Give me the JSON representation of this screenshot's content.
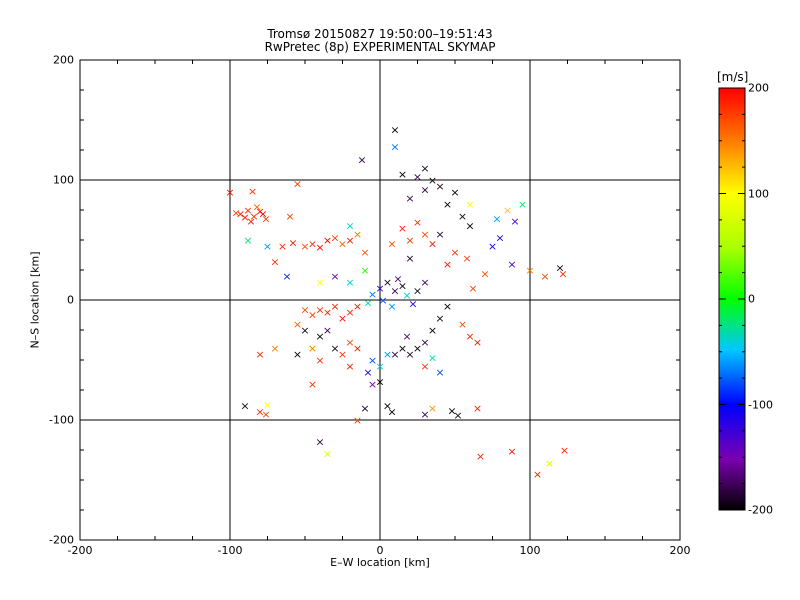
{
  "chart_data": {
    "type": "scatter",
    "title": "Tromsø 20150827 19:50:00–19:51:43",
    "subtitle": "RwPretec (8p) EXPERIMENTAL SKYMAP",
    "xlabel": "E–W location [km]",
    "ylabel": "N–S location [km]",
    "xlim": [
      -200,
      200
    ],
    "ylim": [
      -200,
      200
    ],
    "xticks": [
      -200,
      -100,
      0,
      100,
      200
    ],
    "yticks": [
      -200,
      -100,
      0,
      100,
      200
    ],
    "grid_lines": {
      "x": [
        -100,
        0,
        100
      ],
      "y": [
        -100,
        0,
        100
      ]
    },
    "colorbar": {
      "unit": "[m/s]",
      "range": [
        -200,
        200
      ],
      "ticks": [
        -200,
        -100,
        0,
        100,
        200
      ],
      "colormap": "black-purple-blue-cyan-green-yellow-orange-red"
    },
    "markers": {
      "dot": "•",
      "cross": "×"
    },
    "series": [
      {
        "values_description_note": "",
        "points": [
          {
            "x": -93,
            "y": 72,
            "v": 190,
            "m": "x"
          },
          {
            "x": -88,
            "y": 75,
            "v": 185,
            "m": "x"
          },
          {
            "x": -84,
            "y": 70,
            "v": 180,
            "m": "x"
          },
          {
            "x": -80,
            "y": 74,
            "v": 195,
            "m": "x"
          },
          {
            "x": -76,
            "y": 68,
            "v": 175,
            "m": "x"
          },
          {
            "x": -86,
            "y": 66,
            "v": 188,
            "m": "x"
          },
          {
            "x": -96,
            "y": 73,
            "v": 170,
            "m": "x"
          },
          {
            "x": -82,
            "y": 78,
            "v": 160,
            "m": "x"
          },
          {
            "x": -78,
            "y": 72,
            "v": 200,
            "m": "x"
          },
          {
            "x": -90,
            "y": 69,
            "v": 192,
            "m": "x"
          },
          {
            "x": -85,
            "y": 91,
            "v": 180,
            "m": "x"
          },
          {
            "x": -55,
            "y": 97,
            "v": 175,
            "m": "x"
          },
          {
            "x": -60,
            "y": 70,
            "v": 170,
            "m": "x"
          },
          {
            "x": -65,
            "y": 45,
            "v": 185,
            "m": "x"
          },
          {
            "x": -58,
            "y": 48,
            "v": 190,
            "m": "x"
          },
          {
            "x": -50,
            "y": 45,
            "v": 170,
            "m": "x"
          },
          {
            "x": -45,
            "y": 47,
            "v": 180,
            "m": "x"
          },
          {
            "x": -40,
            "y": 44,
            "v": 195,
            "m": "x"
          },
          {
            "x": -35,
            "y": 50,
            "v": 200,
            "m": "x"
          },
          {
            "x": -30,
            "y": 52,
            "v": 175,
            "m": "x"
          },
          {
            "x": -25,
            "y": 47,
            "v": 160,
            "m": "x"
          },
          {
            "x": -20,
            "y": 50,
            "v": 190,
            "m": "x"
          },
          {
            "x": -15,
            "y": 55,
            "v": 150,
            "m": "x"
          },
          {
            "x": -10,
            "y": 40,
            "v": 165,
            "m": "x"
          },
          {
            "x": -88,
            "y": 50,
            "v": -20,
            "m": "x"
          },
          {
            "x": -75,
            "y": 45,
            "v": -60,
            "m": "x"
          },
          {
            "x": -62,
            "y": 20,
            "v": -90,
            "m": "x"
          },
          {
            "x": -70,
            "y": 32,
            "v": 180,
            "m": "x"
          },
          {
            "x": -12,
            "y": 117,
            "v": -180,
            "m": "x"
          },
          {
            "x": 10,
            "y": 142,
            "v": -200,
            "m": "x"
          },
          {
            "x": 10,
            "y": 128,
            "v": -70,
            "m": "x"
          },
          {
            "x": 30,
            "y": 110,
            "v": -190,
            "m": "x"
          },
          {
            "x": 25,
            "y": 103,
            "v": -180,
            "m": "x"
          },
          {
            "x": 15,
            "y": 105,
            "v": -200,
            "m": "x"
          },
          {
            "x": 35,
            "y": 100,
            "v": -195,
            "m": "x"
          },
          {
            "x": 40,
            "y": 95,
            "v": -190,
            "m": "x"
          },
          {
            "x": 50,
            "y": 90,
            "v": -200,
            "m": "x"
          },
          {
            "x": 30,
            "y": 92,
            "v": -185,
            "m": "x"
          },
          {
            "x": 20,
            "y": 85,
            "v": -180,
            "m": "x"
          },
          {
            "x": 45,
            "y": 80,
            "v": -200,
            "m": "x"
          },
          {
            "x": 55,
            "y": 70,
            "v": -190,
            "m": "x"
          },
          {
            "x": 60,
            "y": 62,
            "v": -200,
            "m": "x"
          },
          {
            "x": 40,
            "y": 55,
            "v": -185,
            "m": "x"
          },
          {
            "x": 25,
            "y": 65,
            "v": 180,
            "m": "x"
          },
          {
            "x": 30,
            "y": 55,
            "v": 170,
            "m": "x"
          },
          {
            "x": 35,
            "y": 47,
            "v": 190,
            "m": "x"
          },
          {
            "x": 20,
            "y": 50,
            "v": 175,
            "m": "x"
          },
          {
            "x": 15,
            "y": 60,
            "v": 185,
            "m": "x"
          },
          {
            "x": 8,
            "y": 47,
            "v": 165,
            "m": "x"
          },
          {
            "x": 50,
            "y": 40,
            "v": 180,
            "m": "x"
          },
          {
            "x": 58,
            "y": 35,
            "v": 175,
            "m": "x"
          },
          {
            "x": 45,
            "y": 30,
            "v": 190,
            "m": "x"
          },
          {
            "x": 78,
            "y": 68,
            "v": -60,
            "m": "x"
          },
          {
            "x": 85,
            "y": 75,
            "v": 120,
            "m": "x"
          },
          {
            "x": 90,
            "y": 66,
            "v": -130,
            "m": "x"
          },
          {
            "x": 95,
            "y": 80,
            "v": -20,
            "m": "x"
          },
          {
            "x": 75,
            "y": 45,
            "v": -110,
            "m": "x"
          },
          {
            "x": 88,
            "y": 30,
            "v": -130,
            "m": "x"
          },
          {
            "x": 120,
            "y": 27,
            "v": -190,
            "m": "x"
          },
          {
            "x": 122,
            "y": 22,
            "v": 185,
            "m": "x"
          },
          {
            "x": 110,
            "y": 20,
            "v": 170,
            "m": "x"
          },
          {
            "x": 70,
            "y": 22,
            "v": 170,
            "m": "x"
          },
          {
            "x": 100,
            "y": 25,
            "v": 150,
            "m": "x"
          },
          {
            "x": 62,
            "y": 10,
            "v": 175,
            "m": "x"
          },
          {
            "x": -20,
            "y": 62,
            "v": -40,
            "m": "x"
          },
          {
            "x": -40,
            "y": 15,
            "v": 100,
            "m": "x"
          },
          {
            "x": -5,
            "y": 5,
            "v": -70,
            "m": "x"
          },
          {
            "x": 0,
            "y": 10,
            "v": -120,
            "m": "x"
          },
          {
            "x": 5,
            "y": 15,
            "v": -190,
            "m": "x"
          },
          {
            "x": 10,
            "y": 8,
            "v": -180,
            "m": "x"
          },
          {
            "x": 15,
            "y": 12,
            "v": -200,
            "m": "x"
          },
          {
            "x": 12,
            "y": 18,
            "v": -170,
            "m": "x"
          },
          {
            "x": 18,
            "y": 4,
            "v": -40,
            "m": "x"
          },
          {
            "x": 2,
            "y": 0,
            "v": -80,
            "m": "x"
          },
          {
            "x": -8,
            "y": -2,
            "v": -30,
            "m": "x"
          },
          {
            "x": 8,
            "y": -5,
            "v": -60,
            "m": "x"
          },
          {
            "x": 22,
            "y": -3,
            "v": -110,
            "m": "x"
          },
          {
            "x": 25,
            "y": 8,
            "v": -190,
            "m": "x"
          },
          {
            "x": 30,
            "y": 15,
            "v": -175,
            "m": "x"
          },
          {
            "x": -30,
            "y": -5,
            "v": 190,
            "m": "x"
          },
          {
            "x": -35,
            "y": -10,
            "v": 185,
            "m": "x"
          },
          {
            "x": -40,
            "y": -8,
            "v": 180,
            "m": "x"
          },
          {
            "x": -45,
            "y": -12,
            "v": 175,
            "m": "x"
          },
          {
            "x": -50,
            "y": -8,
            "v": 170,
            "m": "x"
          },
          {
            "x": -25,
            "y": -15,
            "v": 195,
            "m": "x"
          },
          {
            "x": -20,
            "y": -10,
            "v": 180,
            "m": "x"
          },
          {
            "x": -15,
            "y": -5,
            "v": 190,
            "m": "x"
          },
          {
            "x": -55,
            "y": -20,
            "v": 160,
            "m": "x"
          },
          {
            "x": -50,
            "y": -25,
            "v": -190,
            "m": "x"
          },
          {
            "x": -40,
            "y": -30,
            "v": -200,
            "m": "x"
          },
          {
            "x": -35,
            "y": -25,
            "v": -180,
            "m": "x"
          },
          {
            "x": -30,
            "y": -40,
            "v": -190,
            "m": "x"
          },
          {
            "x": -25,
            "y": -45,
            "v": 180,
            "m": "x"
          },
          {
            "x": -20,
            "y": -35,
            "v": 170,
            "m": "x"
          },
          {
            "x": -15,
            "y": -40,
            "v": 190,
            "m": "x"
          },
          {
            "x": -45,
            "y": -40,
            "v": 150,
            "m": "x"
          },
          {
            "x": -55,
            "y": -45,
            "v": -200,
            "m": "x"
          },
          {
            "x": -70,
            "y": -40,
            "v": 150,
            "m": "x"
          },
          {
            "x": -80,
            "y": -45,
            "v": 180,
            "m": "x"
          },
          {
            "x": -20,
            "y": -55,
            "v": 190,
            "m": "x"
          },
          {
            "x": -5,
            "y": -50,
            "v": -80,
            "m": "x"
          },
          {
            "x": 0,
            "y": -55,
            "v": -40,
            "m": "x"
          },
          {
            "x": 5,
            "y": -45,
            "v": -60,
            "m": "x"
          },
          {
            "x": -8,
            "y": -60,
            "v": -110,
            "m": "x"
          },
          {
            "x": -5,
            "y": -70,
            "v": -150,
            "m": "x"
          },
          {
            "x": 0,
            "y": -68,
            "v": -200,
            "m": "x"
          },
          {
            "x": 10,
            "y": -45,
            "v": -180,
            "m": "x"
          },
          {
            "x": 15,
            "y": -40,
            "v": -200,
            "m": "x"
          },
          {
            "x": 20,
            "y": -45,
            "v": -190,
            "m": "x"
          },
          {
            "x": 25,
            "y": -40,
            "v": -200,
            "m": "x"
          },
          {
            "x": 30,
            "y": -35,
            "v": -180,
            "m": "x"
          },
          {
            "x": 18,
            "y": -30,
            "v": -170,
            "m": "x"
          },
          {
            "x": 35,
            "y": -25,
            "v": -200,
            "m": "x"
          },
          {
            "x": 40,
            "y": -15,
            "v": -190,
            "m": "x"
          },
          {
            "x": 45,
            "y": -5,
            "v": -200,
            "m": "x"
          },
          {
            "x": 30,
            "y": -55,
            "v": 180,
            "m": "x"
          },
          {
            "x": 35,
            "y": -48,
            "v": -30,
            "m": "x"
          },
          {
            "x": 55,
            "y": -20,
            "v": 170,
            "m": "x"
          },
          {
            "x": 60,
            "y": -30,
            "v": 180,
            "m": "x"
          },
          {
            "x": 65,
            "y": -35,
            "v": 190,
            "m": "x"
          },
          {
            "x": -90,
            "y": -88,
            "v": -190,
            "m": "x"
          },
          {
            "x": -75,
            "y": -87,
            "v": 100,
            "m": "x"
          },
          {
            "x": -80,
            "y": -93,
            "v": 180,
            "m": "x"
          },
          {
            "x": -76,
            "y": -95,
            "v": 170,
            "m": "x"
          },
          {
            "x": -45,
            "y": -70,
            "v": 180,
            "m": "x"
          },
          {
            "x": -10,
            "y": -90,
            "v": -190,
            "m": "x"
          },
          {
            "x": 5,
            "y": -88,
            "v": -200,
            "m": "x"
          },
          {
            "x": 8,
            "y": -93,
            "v": -200,
            "m": "x"
          },
          {
            "x": 30,
            "y": -95,
            "v": -180,
            "m": "x"
          },
          {
            "x": 35,
            "y": -90,
            "v": 140,
            "m": "x"
          },
          {
            "x": 48,
            "y": -92,
            "v": -200,
            "m": "x"
          },
          {
            "x": 52,
            "y": -96,
            "v": -190,
            "m": "x"
          },
          {
            "x": 65,
            "y": -90,
            "v": 185,
            "m": "x"
          },
          {
            "x": -15,
            "y": -100,
            "v": 180,
            "m": "x"
          },
          {
            "x": -35,
            "y": -128,
            "v": 80,
            "m": "x"
          },
          {
            "x": -40,
            "y": -118,
            "v": -180,
            "m": "x"
          },
          {
            "x": 67,
            "y": -130,
            "v": 185,
            "m": "x"
          },
          {
            "x": 88,
            "y": -126,
            "v": 190,
            "m": "x"
          },
          {
            "x": 113,
            "y": -136,
            "v": 80,
            "m": "x"
          },
          {
            "x": 105,
            "y": -145,
            "v": 185,
            "m": "x"
          },
          {
            "x": 123,
            "y": -125,
            "v": 185,
            "m": "x"
          },
          {
            "x": -40,
            "y": -50,
            "v": 180,
            "m": "x"
          },
          {
            "x": 80,
            "y": 52,
            "v": -110,
            "m": "x"
          },
          {
            "x": 20,
            "y": 35,
            "v": -190,
            "m": "x"
          },
          {
            "x": -30,
            "y": 20,
            "v": -150,
            "m": "x"
          },
          {
            "x": -20,
            "y": 15,
            "v": -40,
            "m": "x"
          },
          {
            "x": -10,
            "y": 25,
            "v": 10,
            "m": "x"
          },
          {
            "x": 40,
            "y": -60,
            "v": -80,
            "m": "x"
          },
          {
            "x": 60,
            "y": 80,
            "v": 100,
            "m": "x"
          },
          {
            "x": -100,
            "y": 90,
            "v": 190,
            "m": "x"
          }
        ]
      }
    ]
  }
}
